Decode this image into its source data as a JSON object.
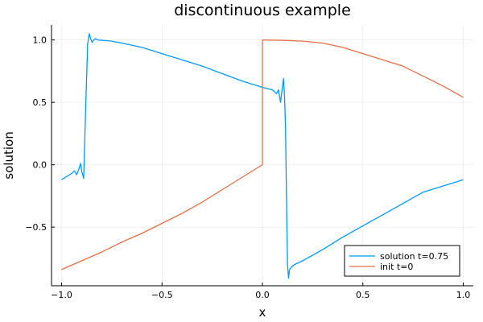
{
  "chart_data": {
    "type": "line",
    "title": "discontinuous example",
    "xlabel": "x",
    "ylabel": "solution",
    "xlim": [
      -1.05,
      1.05
    ],
    "ylim": [
      -0.97,
      1.12
    ],
    "xticks": [
      -1.0,
      -0.5,
      0.0,
      0.5,
      1.0
    ],
    "xtick_labels": [
      "−1.0",
      "−0.5",
      "0.0",
      "0.5",
      "1.0"
    ],
    "yticks": [
      -0.5,
      0.0,
      0.5,
      1.0
    ],
    "ytick_labels": [
      "−0.5",
      "0.0",
      "0.5",
      "1.0"
    ],
    "grid": true,
    "legend_position": "bottom-right",
    "series": [
      {
        "name": "solution t=0.75",
        "color": "#009AFA",
        "x": [
          -1.0,
          -0.97,
          -0.95,
          -0.935,
          -0.925,
          -0.915,
          -0.905,
          -0.9,
          -0.89,
          -0.88,
          -0.87,
          -0.862,
          -0.855,
          -0.848,
          -0.84,
          -0.83,
          -0.82,
          -0.8,
          -0.75,
          -0.7,
          -0.6,
          -0.5,
          -0.4,
          -0.3,
          -0.2,
          -0.1,
          0.0,
          0.05,
          0.07,
          0.08,
          0.09,
          0.1,
          0.105,
          0.11,
          0.115,
          0.12,
          0.125,
          0.13,
          0.135,
          0.14,
          0.145,
          0.15,
          0.16,
          0.2,
          0.3,
          0.4,
          0.5,
          0.6,
          0.7,
          0.8,
          0.9,
          1.0
        ],
        "y": [
          -0.12,
          -0.09,
          -0.07,
          -0.05,
          -0.08,
          -0.04,
          0.01,
          -0.05,
          -0.11,
          0.45,
          0.97,
          1.05,
          1.01,
          0.98,
          1.0,
          1.01,
          1.0,
          0.997,
          0.99,
          0.975,
          0.94,
          0.89,
          0.84,
          0.79,
          0.73,
          0.67,
          0.62,
          0.6,
          0.57,
          0.6,
          0.5,
          0.63,
          0.69,
          0.55,
          0.3,
          -0.3,
          -0.8,
          -0.91,
          -0.84,
          -0.83,
          -0.82,
          -0.81,
          -0.8,
          -0.77,
          -0.68,
          -0.58,
          -0.49,
          -0.4,
          -0.31,
          -0.22,
          -0.17,
          -0.12
        ]
      },
      {
        "name": "init t=0",
        "color": "#E26F46",
        "x": [
          -1.0,
          -0.9,
          -0.8,
          -0.7,
          -0.6,
          -0.5,
          -0.4,
          -0.3,
          -0.2,
          -0.1,
          0.0,
          0.0,
          0.1,
          0.2,
          0.3,
          0.4,
          0.5,
          0.6,
          0.7,
          0.8,
          0.9,
          1.0
        ],
        "y": [
          -0.84,
          -0.77,
          -0.7,
          -0.62,
          -0.55,
          -0.47,
          -0.39,
          -0.3,
          -0.2,
          -0.1,
          0.0,
          1.0,
          0.997,
          0.99,
          0.975,
          0.94,
          0.89,
          0.84,
          0.79,
          0.71,
          0.63,
          0.54
        ]
      }
    ]
  }
}
